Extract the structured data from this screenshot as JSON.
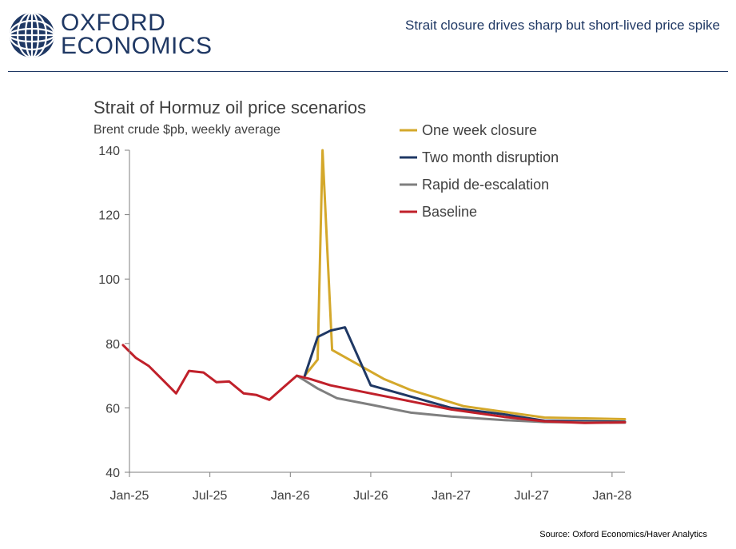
{
  "header": {
    "logo_line1": "OXFORD",
    "logo_line2": "ECONOMICS",
    "title": "Strait closure drives sharp but short-lived price spike"
  },
  "source": "Source: Oxford Economics/Haver Analytics",
  "colors": {
    "brand": "#1f3864",
    "one_week": "#d4a82b",
    "two_month": "#1f3864",
    "rapid": "#7f7f7f",
    "baseline": "#c0202a"
  },
  "chart_data": {
    "type": "line",
    "title": "Strait of Hormuz oil price scenarios",
    "subtitle": "Brent crude $pb, weekly average",
    "xlabel": "",
    "ylabel": "",
    "ylim": [
      40,
      140
    ],
    "yticks": [
      40,
      60,
      80,
      100,
      120,
      140
    ],
    "xlim": [
      2025.0,
      2028.08
    ],
    "xticks": [
      {
        "x": 2025.0,
        "label": "Jan-25"
      },
      {
        "x": 2025.5,
        "label": "Jul-25"
      },
      {
        "x": 2026.0,
        "label": "Jan-26"
      },
      {
        "x": 2026.5,
        "label": "Jul-26"
      },
      {
        "x": 2027.0,
        "label": "Jan-27"
      },
      {
        "x": 2027.5,
        "label": "Jul-27"
      },
      {
        "x": 2028.0,
        "label": "Jan-28"
      }
    ],
    "legend_position": "top-right",
    "series": [
      {
        "name": "One week closure",
        "color": "#d4a82b",
        "x": [
          2026.09,
          2026.17,
          2026.2,
          2026.26,
          2026.58,
          2026.75,
          2027.08,
          2027.58,
          2028.08
        ],
        "values": [
          70,
          75,
          140,
          78,
          69,
          65.5,
          60.5,
          57,
          56.5
        ]
      },
      {
        "name": "Two month disruption",
        "color": "#1f3864",
        "x": [
          2026.09,
          2026.17,
          2026.25,
          2026.34,
          2026.5,
          2026.75,
          2027.0,
          2027.33,
          2027.58,
          2028.08
        ],
        "values": [
          70,
          82,
          84,
          85,
          67,
          63.5,
          60,
          58,
          56,
          55.7
        ]
      },
      {
        "name": "Rapid de-escalation",
        "color": "#7f7f7f",
        "x": [
          2026.04,
          2026.09,
          2026.17,
          2026.29,
          2026.5,
          2026.75,
          2027.0,
          2027.33,
          2027.58,
          2028.08
        ],
        "values": [
          70,
          68.5,
          66,
          63,
          61,
          58.5,
          57.3,
          56.2,
          55.6,
          55.4
        ]
      },
      {
        "name": "Baseline",
        "color": "#c0202a",
        "x": [
          2024.96,
          2025.04,
          2025.12,
          2025.21,
          2025.29,
          2025.37,
          2025.46,
          2025.54,
          2025.62,
          2025.71,
          2025.79,
          2025.87,
          2025.96,
          2026.04,
          2026.12,
          2026.25,
          2026.5,
          2026.75,
          2027.0,
          2027.33,
          2027.58,
          2027.83,
          2028.08
        ],
        "values": [
          79.5,
          75.5,
          73,
          68.5,
          64.5,
          71.5,
          71,
          68,
          68.2,
          64.5,
          64,
          62.5,
          66.5,
          70,
          69,
          67,
          64.5,
          62,
          59.5,
          57.2,
          55.8,
          55.3,
          55.5
        ]
      }
    ]
  }
}
